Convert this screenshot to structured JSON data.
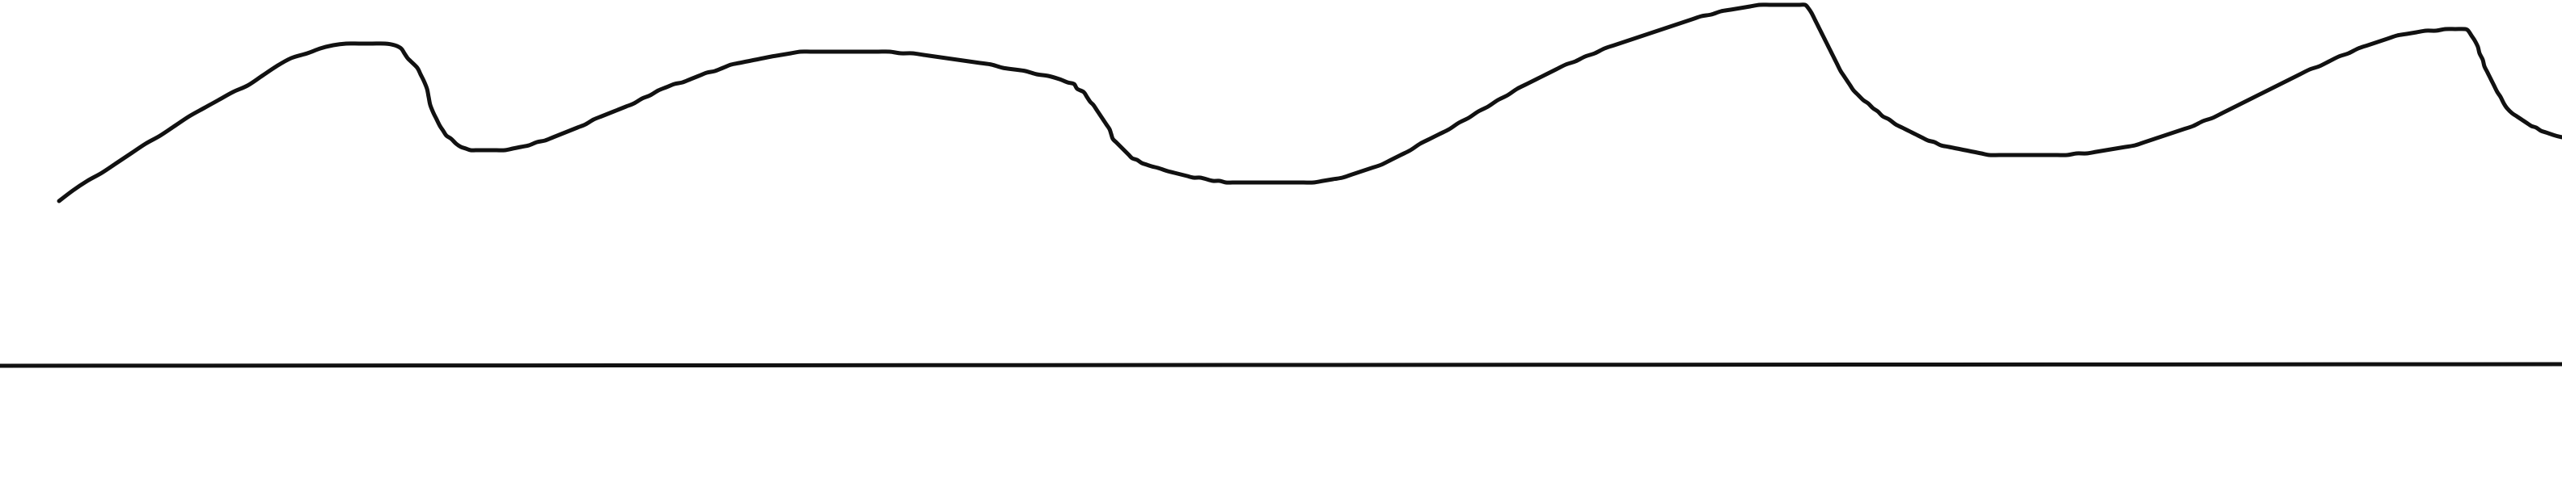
{
  "drawing": {
    "background_color": "#ffffff",
    "stroke_color": "#111111",
    "elements": [
      {
        "kind": "freehand-stroke",
        "description_name": "wavy-curve"
      },
      {
        "kind": "straight-line",
        "description_name": "baseline"
      }
    ]
  }
}
